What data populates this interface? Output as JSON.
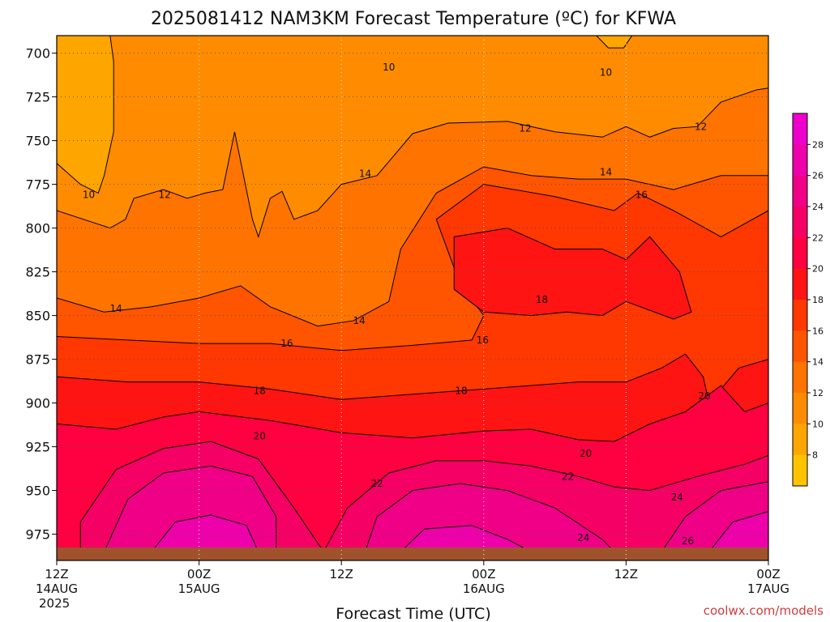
{
  "chart_data": {
    "type": "heatmap",
    "title": "2025081412 NAM3KM Forecast Temperature (ºC) for KFWA",
    "xlabel": "Forecast Time (UTC)",
    "ylabel": "",
    "credit": "coolwx.com/models",
    "y_scale": "pressure (reversed, top = 690 mb)",
    "ylim": [
      990,
      690
    ],
    "y_ticks": [
      700,
      725,
      750,
      775,
      800,
      825,
      850,
      875,
      900,
      925,
      950,
      975
    ],
    "x_hours_range": [
      0,
      60
    ],
    "x_ticks": [
      {
        "hour": 0,
        "line1": "12Z",
        "line2": "14AUG",
        "line3": "2025"
      },
      {
        "hour": 12,
        "line1": "00Z",
        "line2": "15AUG",
        "line3": ""
      },
      {
        "hour": 24,
        "line1": "12Z",
        "line2": "",
        "line3": ""
      },
      {
        "hour": 36,
        "line1": "00Z",
        "line2": "16AUG",
        "line3": ""
      },
      {
        "hour": 48,
        "line1": "12Z",
        "line2": "",
        "line3": ""
      },
      {
        "hour": 60,
        "line1": "00Z",
        "line2": "17AUG",
        "line3": ""
      }
    ],
    "grid": true,
    "colorbar": {
      "levels": [
        8,
        10,
        12,
        14,
        16,
        18,
        20,
        22,
        24,
        26,
        28
      ],
      "colors": [
        "#ffc400",
        "#ffa500",
        "#ff8c00",
        "#ff7300",
        "#ff5500",
        "#ff3700",
        "#ff1414",
        "#ff0040",
        "#f50064",
        "#f00087",
        "#ee00aa",
        "#ee00cc"
      ]
    },
    "ground_color": "#a0522d",
    "contour_labels": [
      {
        "text": "10",
        "hour": 2.7,
        "p": 781
      },
      {
        "text": "12",
        "hour": 9.1,
        "p": 781
      },
      {
        "text": "10",
        "hour": 28.0,
        "p": 708
      },
      {
        "text": "10",
        "hour": 46.3,
        "p": 711
      },
      {
        "text": "12",
        "hour": 39.5,
        "p": 743
      },
      {
        "text": "12",
        "hour": 54.3,
        "p": 742
      },
      {
        "text": "14",
        "hour": 26.0,
        "p": 769
      },
      {
        "text": "14",
        "hour": 46.3,
        "p": 768
      },
      {
        "text": "16",
        "hour": 49.3,
        "p": 781
      },
      {
        "text": "14",
        "hour": 5.0,
        "p": 846
      },
      {
        "text": "14",
        "hour": 25.5,
        "p": 853
      },
      {
        "text": "16",
        "hour": 19.4,
        "p": 866
      },
      {
        "text": "16",
        "hour": 35.9,
        "p": 864
      },
      {
        "text": "18",
        "hour": 40.9,
        "p": 841
      },
      {
        "text": "18",
        "hour": 17.1,
        "p": 893
      },
      {
        "text": "18",
        "hour": 34.1,
        "p": 893
      },
      {
        "text": "20",
        "hour": 17.1,
        "p": 919
      },
      {
        "text": "20",
        "hour": 44.6,
        "p": 929
      },
      {
        "text": "20",
        "hour": 54.6,
        "p": 896
      },
      {
        "text": "22",
        "hour": 27.0,
        "p": 946
      },
      {
        "text": "22",
        "hour": 43.1,
        "p": 942
      },
      {
        "text": "24",
        "hour": 44.4,
        "p": 977
      },
      {
        "text": "24",
        "hour": 52.3,
        "p": 954
      },
      {
        "text": "26",
        "hour": 53.2,
        "p": 979
      }
    ]
  }
}
